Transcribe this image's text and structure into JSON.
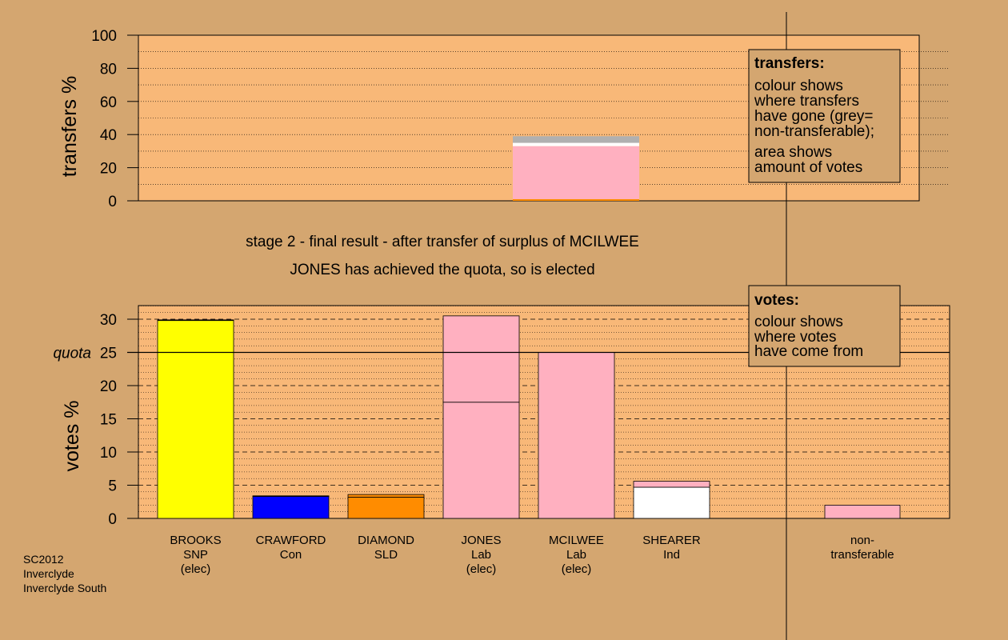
{
  "colors": {
    "background": "#d4a670",
    "panel": "#f8b878",
    "SNP": "#ffff00",
    "Con": "#0000ff",
    "SLD": "#ff8c00",
    "Lab": "#ffb0c0",
    "Ind": "#ffffff",
    "non_transferable": "#b0b0b0"
  },
  "headline": {
    "line1": "stage 2 - final result - after transfer of surplus of MCILWEE",
    "line2": "JONES has achieved the quota, so is elected"
  },
  "legend_transfers": {
    "title": "transfers:",
    "lines": [
      "colour shows",
      "where transfers",
      "have gone (grey=",
      "non-transferable);"
    ],
    "lines2": [
      "area shows",
      "amount of votes"
    ]
  },
  "legend_votes": {
    "title": "votes:",
    "lines": [
      "colour shows",
      "where votes",
      "have come from"
    ]
  },
  "footer": {
    "line1": "SC2012",
    "line2": "Inverclyde",
    "line3": "Inverclyde South"
  },
  "chart_data": [
    {
      "type": "bar",
      "name": "transfers",
      "ylabel": "transfers %",
      "ylim": [
        0,
        100
      ],
      "yticks": [
        "0",
        "20",
        "40",
        "60",
        "80",
        "100"
      ],
      "grid": true,
      "legend_position": "top-right",
      "transfer_bar": {
        "stacked_segments": [
          {
            "party": "SLD",
            "value": 1
          },
          {
            "party": "Lab",
            "value": 32
          },
          {
            "party": "Ind",
            "value": 2
          },
          {
            "party": "non_transferable",
            "value": 4
          }
        ]
      }
    },
    {
      "type": "bar",
      "name": "votes",
      "ylabel": "votes %",
      "ylim": [
        0,
        32
      ],
      "yticks": [
        "0",
        "5",
        "10",
        "15",
        "20",
        "25",
        "30"
      ],
      "quota": {
        "label": "quota",
        "value": 25
      },
      "grid": true,
      "legend_position": "top-right",
      "candidates": [
        {
          "name": "BROOKS",
          "party_label": "SNP",
          "status": "(elec)",
          "party": "SNP",
          "segments": [
            {
              "party": "SNP",
              "value": 29.8
            },
            {
              "party": "SNP",
              "value": 0.1
            }
          ]
        },
        {
          "name": "CRAWFORD",
          "party_label": "Con",
          "status": "",
          "party": "Con",
          "segments": [
            {
              "party": "Con",
              "value": 3.3
            },
            {
              "party": "Con",
              "value": 0.1
            }
          ]
        },
        {
          "name": "DIAMOND",
          "party_label": "SLD",
          "status": "",
          "party": "SLD",
          "segments": [
            {
              "party": "SLD",
              "value": 3.2
            },
            {
              "party": "SLD",
              "value": 0.4
            }
          ]
        },
        {
          "name": "JONES",
          "party_label": "Lab",
          "status": "(elec)",
          "party": "Lab",
          "segments": [
            {
              "party": "Lab",
              "value": 17.5
            },
            {
              "party": "Lab",
              "value": 13.0
            }
          ]
        },
        {
          "name": "MCILWEE",
          "party_label": "Lab",
          "status": "(elec)",
          "party": "Lab",
          "segments": [
            {
              "party": "Lab",
              "value": 25.0
            }
          ]
        },
        {
          "name": "SHEARER",
          "party_label": "Ind",
          "status": "",
          "party": "Ind",
          "segments": [
            {
              "party": "Ind",
              "value": 4.7
            },
            {
              "party": "Lab",
              "value": 0.9
            }
          ]
        }
      ],
      "non_transferable": {
        "label1": "non-",
        "label2": "transferable",
        "segments": [
          {
            "party": "Lab",
            "value": 2.0
          }
        ]
      }
    }
  ]
}
